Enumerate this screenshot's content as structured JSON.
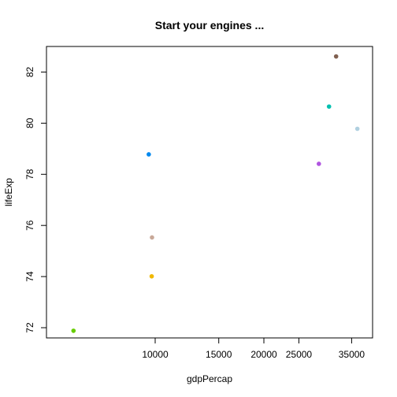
{
  "chart_data": {
    "type": "scatter",
    "title": "Start your engines ...",
    "xlabel": "gdpPercap",
    "ylabel": "lifeExp",
    "x_scale": "log",
    "xlim": [
      5000,
      40000
    ],
    "ylim": [
      71.6,
      83.0
    ],
    "x_ticks": [
      {
        "value": 10000,
        "label": "10000"
      },
      {
        "value": 15000,
        "label": "15000"
      },
      {
        "value": 20000,
        "label": "20000"
      },
      {
        "value": 25000,
        "label": "25000"
      },
      {
        "value": 35000,
        "label": "35000"
      }
    ],
    "y_ticks": [
      {
        "value": 72,
        "label": "72"
      },
      {
        "value": 74,
        "label": "74"
      },
      {
        "value": 76,
        "label": "76"
      },
      {
        "value": 78,
        "label": "78"
      },
      {
        "value": 80,
        "label": "80"
      },
      {
        "value": 82,
        "label": "82"
      }
    ],
    "grid": false,
    "points": [
      {
        "x": 5940,
        "y": 71.88,
        "color": "#66cc00"
      },
      {
        "x": 9600,
        "y": 78.78,
        "color": "#0088ee"
      },
      {
        "x": 9800,
        "y": 75.53,
        "color": "#c8a898"
      },
      {
        "x": 9780,
        "y": 74.01,
        "color": "#f0b800"
      },
      {
        "x": 28400,
        "y": 78.41,
        "color": "#b055e0"
      },
      {
        "x": 30300,
        "y": 80.65,
        "color": "#00c0b0"
      },
      {
        "x": 31700,
        "y": 82.61,
        "color": "#806050"
      },
      {
        "x": 36300,
        "y": 79.78,
        "color": "#b0d0e0"
      }
    ]
  }
}
